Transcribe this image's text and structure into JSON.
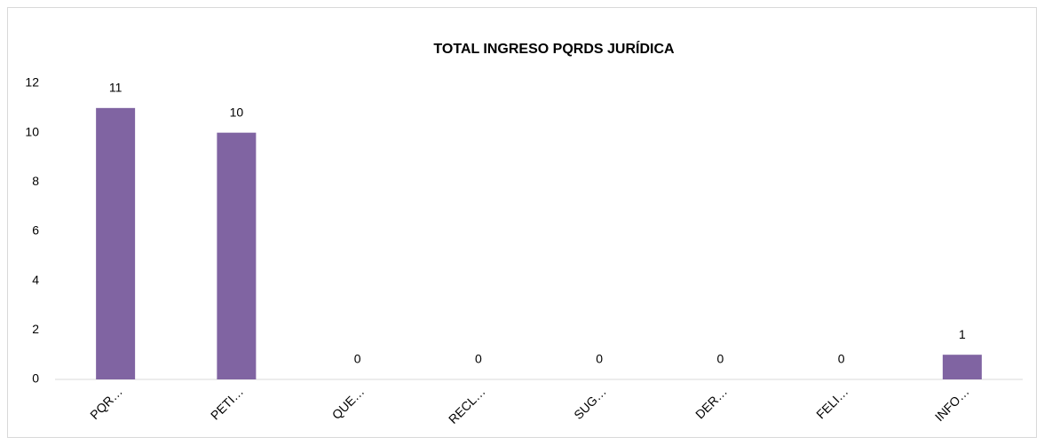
{
  "chart_data": {
    "type": "bar",
    "title": "TOTAL INGRESO PQRDS JURÍDICA",
    "categories": [
      "PQR…",
      "PETI…",
      "QUE…",
      "RECL…",
      "SUG…",
      "DER…",
      "FELI…",
      "INFO…"
    ],
    "values": [
      11,
      10,
      0,
      0,
      0,
      0,
      0,
      1
    ],
    "color": "#8064a2",
    "ylim": [
      0,
      12
    ],
    "yticks": [
      0,
      2,
      4,
      6,
      8,
      10,
      12
    ],
    "grid": false
  }
}
